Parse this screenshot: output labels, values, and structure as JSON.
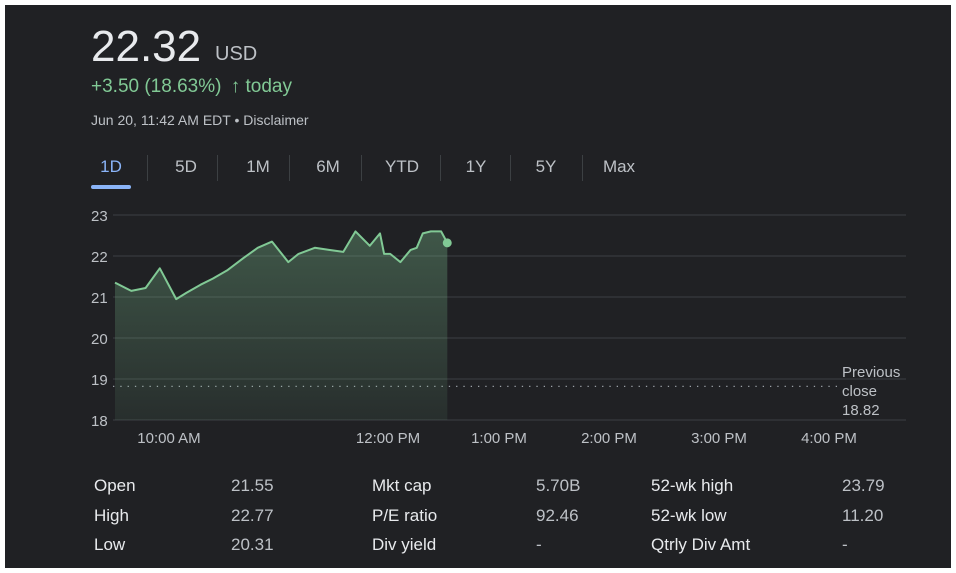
{
  "quote": {
    "price": "22.32",
    "currency": "USD",
    "change": "+3.50 (18.63%)",
    "change_arrow": "↑",
    "change_suffix": "today",
    "timestamp": "Jun 20, 11:42 AM EDT",
    "separator": "•",
    "disclaimer": "Disclaimer"
  },
  "tabs": [
    {
      "label": "1D",
      "active": true
    },
    {
      "label": "5D",
      "active": false
    },
    {
      "label": "1M",
      "active": false
    },
    {
      "label": "6M",
      "active": false
    },
    {
      "label": "YTD",
      "active": false
    },
    {
      "label": "1Y",
      "active": false
    },
    {
      "label": "5Y",
      "active": false
    },
    {
      "label": "Max",
      "active": false
    }
  ],
  "colors": {
    "line": "#81c995",
    "accent": "#8ab4f8",
    "background": "#202124",
    "grid": "#3c4043"
  },
  "chart_data": {
    "type": "area",
    "x_axis": "time",
    "x": [
      "09:30",
      "09:38",
      "09:45",
      "09:52",
      "10:00",
      "10:05",
      "10:12",
      "10:18",
      "10:25",
      "10:33",
      "10:40",
      "10:47",
      "10:55",
      "11:00",
      "11:08",
      "11:15",
      "11:22",
      "11:28",
      "11:35",
      "11:40",
      "11:42",
      "11:45",
      "11:50",
      "11:55",
      "11:58",
      "12:01"
    ],
    "values": [
      21.35,
      21.15,
      21.22,
      21.7,
      20.95,
      21.1,
      21.3,
      21.45,
      21.65,
      21.95,
      22.2,
      22.35,
      21.85,
      22.05,
      22.2,
      22.15,
      22.1,
      22.6,
      22.25,
      22.55,
      22.05,
      22.05,
      21.85,
      22.15,
      22.2,
      22.55
    ],
    "values_tail": [
      22.6,
      22.6,
      22.32
    ],
    "x_tail": [
      "12:05",
      "12:10",
      "12:13"
    ],
    "x_ticks": [
      "10:00 AM",
      "12:00 PM",
      "1:00 PM",
      "2:00 PM",
      "3:00 PM",
      "4:00 PM"
    ],
    "y_ticks": [
      "23",
      "22",
      "21",
      "20",
      "19",
      "18"
    ],
    "ylim": [
      18,
      23
    ],
    "previous_close": {
      "label_1": "Previous",
      "label_2": "close",
      "value": "18.82"
    },
    "grid": true
  },
  "stats": [
    {
      "label": "Open",
      "value": "21.55"
    },
    {
      "label": "High",
      "value": "22.77"
    },
    {
      "label": "Low",
      "value": "20.31"
    },
    {
      "label": "Mkt cap",
      "value": "5.70B"
    },
    {
      "label": "P/E ratio",
      "value": "92.46"
    },
    {
      "label": "Div yield",
      "value": "-"
    },
    {
      "label": "52-wk high",
      "value": "23.79"
    },
    {
      "label": "52-wk low",
      "value": "11.20"
    },
    {
      "label": "Qtrly Div Amt",
      "value": "-"
    }
  ]
}
